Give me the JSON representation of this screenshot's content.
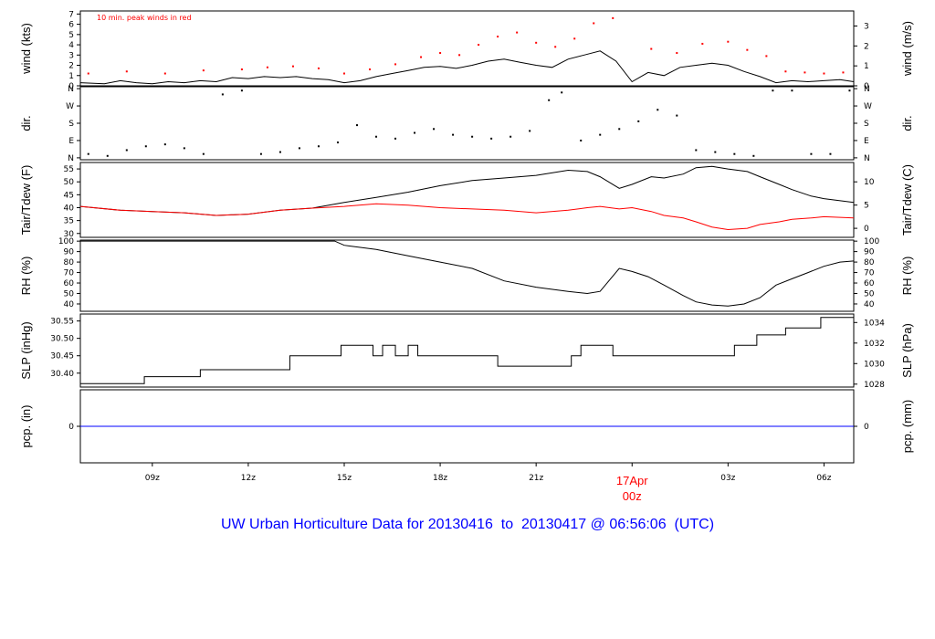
{
  "title": "UW Urban Horticulture Data for 20130416  to  20130417 @ 06:56:06  (UTC)",
  "colors": {
    "black": "#000000",
    "red": "#ff0000",
    "blue": "#0000ff"
  },
  "chart_data": {
    "type": "line",
    "x_axis": {
      "range_hours": [
        6.75,
        30.93
      ],
      "ticks": [
        {
          "hour": 9,
          "label": "09z"
        },
        {
          "hour": 12,
          "label": "12z"
        },
        {
          "hour": 15,
          "label": "15z"
        },
        {
          "hour": 18,
          "label": "18z"
        },
        {
          "hour": 21,
          "label": "21z"
        },
        {
          "hour": 27,
          "label": "03z"
        },
        {
          "hour": 30,
          "label": "06z"
        }
      ],
      "day_marker": {
        "hour": 24,
        "label_top": "17Apr",
        "label_bottom": "00z"
      }
    },
    "panels": [
      {
        "id": "wind",
        "ylabel_left": "wind (kts)",
        "ylabel_right": "wind (m/s)",
        "ylim": [
          0,
          7.3
        ],
        "left_ticks": [
          {
            "v": 0,
            "label": "0"
          },
          {
            "v": 1,
            "label": "1"
          },
          {
            "v": 2,
            "label": "2"
          },
          {
            "v": 3,
            "label": "3"
          },
          {
            "v": 4,
            "label": "4"
          },
          {
            "v": 5,
            "label": "5"
          },
          {
            "v": 6,
            "label": "6"
          },
          {
            "v": 7,
            "label": "7"
          }
        ],
        "right_ticks": [
          {
            "v": 0,
            "label": "0"
          },
          {
            "v": 1.944,
            "label": "1"
          },
          {
            "v": 3.888,
            "label": "2"
          },
          {
            "v": 5.832,
            "label": "3"
          }
        ],
        "annotation": "10 min. peak winds in red",
        "series": [
          {
            "name": "wind",
            "color": "#000000",
            "kind": "line",
            "x": [
              6.75,
              7.5,
              8.0,
              8.5,
              9.0,
              9.5,
              10.0,
              10.5,
              11.0,
              11.5,
              12.0,
              12.5,
              13.0,
              13.5,
              14.0,
              14.5,
              15.0,
              15.5,
              16.0,
              16.5,
              17.0,
              17.5,
              18.0,
              18.5,
              19.0,
              19.5,
              20.0,
              20.5,
              21.0,
              21.5,
              22.0,
              22.5,
              23.0,
              23.5,
              24.0,
              24.5,
              25.0,
              25.5,
              26.0,
              26.5,
              27.0,
              27.5,
              28.0,
              28.5,
              29.0,
              29.5,
              30.0,
              30.5,
              30.93
            ],
            "y": [
              0.3,
              0.2,
              0.5,
              0.3,
              0.2,
              0.4,
              0.3,
              0.5,
              0.4,
              0.8,
              0.7,
              0.9,
              0.8,
              0.9,
              0.7,
              0.6,
              0.3,
              0.5,
              0.9,
              1.2,
              1.5,
              1.8,
              1.9,
              1.7,
              2.0,
              2.4,
              2.6,
              2.3,
              2.0,
              1.8,
              2.6,
              3.0,
              3.4,
              2.4,
              0.4,
              1.3,
              1.0,
              1.8,
              2.0,
              2.2,
              2.0,
              1.4,
              0.9,
              0.3,
              0.5,
              0.4,
              0.5,
              0.6,
              0.4
            ]
          },
          {
            "name": "peak",
            "color": "#ff0000",
            "kind": "points",
            "x": [
              7.0,
              8.2,
              9.4,
              10.6,
              11.8,
              12.6,
              13.4,
              14.2,
              15.0,
              15.8,
              16.6,
              17.4,
              18.0,
              18.6,
              19.2,
              19.8,
              20.4,
              21.0,
              21.6,
              22.2,
              22.8,
              23.4,
              24.6,
              25.4,
              26.2,
              27.0,
              27.6,
              28.2,
              28.8,
              29.4,
              30.0,
              30.6
            ],
            "y": [
              1.2,
              1.4,
              1.2,
              1.5,
              1.6,
              1.8,
              1.9,
              1.7,
              1.2,
              1.6,
              2.1,
              2.8,
              3.2,
              3.0,
              4.0,
              4.8,
              5.2,
              4.2,
              3.8,
              4.6,
              6.1,
              6.6,
              3.6,
              3.2,
              4.1,
              4.3,
              3.5,
              2.9,
              1.4,
              1.3,
              1.2,
              1.3
            ]
          }
        ]
      },
      {
        "id": "dir",
        "ylabel_left": "dir.",
        "ylabel_right": "dir.",
        "ylim": [
          -10,
          370
        ],
        "left_ticks": [
          {
            "v": 0,
            "label": "N"
          },
          {
            "v": 90,
            "label": "E"
          },
          {
            "v": 180,
            "label": "S"
          },
          {
            "v": 270,
            "label": "W"
          },
          {
            "v": 360,
            "label": "N"
          }
        ],
        "right_ticks": [
          {
            "v": 0,
            "label": "N"
          },
          {
            "v": 90,
            "label": "E"
          },
          {
            "v": 180,
            "label": "S"
          },
          {
            "v": 270,
            "label": "W"
          },
          {
            "v": 360,
            "label": "N"
          }
        ],
        "series": [
          {
            "name": "direction",
            "color": "#000000",
            "kind": "points",
            "x": [
              7.0,
              7.6,
              8.2,
              8.8,
              9.4,
              10.0,
              10.6,
              11.2,
              11.8,
              12.4,
              13.0,
              13.6,
              14.2,
              14.8,
              15.4,
              16.0,
              16.6,
              17.2,
              17.8,
              18.4,
              19.0,
              19.6,
              20.2,
              20.8,
              21.4,
              21.8,
              22.4,
              23.0,
              23.6,
              24.2,
              24.8,
              25.4,
              26.0,
              26.6,
              27.2,
              27.8,
              28.4,
              29.0,
              29.6,
              30.2,
              30.8
            ],
            "y": [
              20,
              10,
              40,
              60,
              70,
              50,
              20,
              330,
              350,
              20,
              30,
              50,
              60,
              80,
              170,
              110,
              100,
              130,
              150,
              120,
              110,
              100,
              110,
              140,
              300,
              340,
              90,
              120,
              150,
              190,
              250,
              220,
              40,
              30,
              20,
              10,
              350,
              350,
              20,
              20,
              350
            ]
          }
        ]
      },
      {
        "id": "temp",
        "ylabel_left": "Tair/Tdew (F)",
        "ylabel_right": "Tair/Tdew (C)",
        "ylim": [
          28.5,
          57.5
        ],
        "left_ticks": [
          {
            "v": 30,
            "label": "30"
          },
          {
            "v": 35,
            "label": "35"
          },
          {
            "v": 40,
            "label": "40"
          },
          {
            "v": 45,
            "label": "45"
          },
          {
            "v": 50,
            "label": "50"
          },
          {
            "v": 55,
            "label": "55"
          }
        ],
        "right_ticks": [
          {
            "v": 32,
            "label": "0"
          },
          {
            "v": 41,
            "label": "5"
          },
          {
            "v": 50,
            "label": "10"
          }
        ],
        "series": [
          {
            "name": "Tair",
            "color": "#000000",
            "kind": "line",
            "x": [
              6.75,
              8.0,
              9.0,
              10.0,
              11.0,
              12.0,
              13.0,
              14.0,
              15.0,
              16.0,
              17.0,
              18.0,
              19.0,
              20.0,
              21.0,
              22.0,
              22.6,
              23.0,
              23.6,
              24.0,
              24.6,
              25.0,
              25.6,
              26.0,
              26.5,
              27.0,
              27.6,
              28.0,
              28.6,
              29.0,
              29.6,
              30.0,
              30.93
            ],
            "y": [
              40.5,
              39.0,
              38.5,
              38.0,
              37.0,
              37.5,
              39.0,
              39.8,
              42.0,
              44.0,
              46.0,
              48.5,
              50.5,
              51.5,
              52.5,
              54.5,
              54.0,
              52.0,
              47.5,
              49.0,
              52.0,
              51.5,
              53.0,
              55.5,
              56.0,
              55.0,
              54.0,
              52.0,
              49.0,
              47.0,
              44.5,
              43.5,
              42.0
            ]
          },
          {
            "name": "Tdew",
            "color": "#ff0000",
            "kind": "line",
            "x": [
              6.75,
              8.0,
              9.0,
              10.0,
              11.0,
              12.0,
              13.0,
              14.0,
              15.0,
              16.0,
              17.0,
              18.0,
              19.0,
              20.0,
              21.0,
              22.0,
              22.6,
              23.0,
              23.6,
              24.0,
              24.6,
              25.0,
              25.6,
              26.0,
              26.5,
              27.0,
              27.6,
              28.0,
              28.6,
              29.0,
              29.6,
              30.0,
              30.93
            ],
            "y": [
              40.5,
              39.0,
              38.5,
              38.0,
              37.0,
              37.5,
              39.0,
              39.8,
              40.5,
              41.5,
              41.0,
              40.0,
              39.5,
              39.0,
              38.0,
              39.0,
              40.0,
              40.5,
              39.5,
              40.0,
              38.5,
              37.0,
              36.0,
              34.5,
              32.5,
              31.5,
              32.0,
              33.5,
              34.5,
              35.5,
              36.0,
              36.5,
              36.0
            ]
          }
        ]
      },
      {
        "id": "rh",
        "ylabel_left": "RH (%)",
        "ylabel_right": "RH (%)",
        "ylim": [
          33,
          101
        ],
        "left_ticks": [
          {
            "v": 40,
            "label": "40"
          },
          {
            "v": 50,
            "label": "50"
          },
          {
            "v": 60,
            "label": "60"
          },
          {
            "v": 70,
            "label": "70"
          },
          {
            "v": 80,
            "label": "80"
          },
          {
            "v": 90,
            "label": "90"
          },
          {
            "v": 100,
            "label": "100"
          }
        ],
        "right_ticks": [
          {
            "v": 40,
            "label": "40"
          },
          {
            "v": 50,
            "label": "50"
          },
          {
            "v": 60,
            "label": "60"
          },
          {
            "v": 70,
            "label": "70"
          },
          {
            "v": 80,
            "label": "80"
          },
          {
            "v": 90,
            "label": "90"
          },
          {
            "v": 100,
            "label": "100"
          }
        ],
        "series": [
          {
            "name": "RH",
            "color": "#000000",
            "kind": "line",
            "x": [
              6.75,
              10.0,
              14.0,
              14.7,
              15.0,
              16.0,
              17.0,
              18.0,
              19.0,
              20.0,
              21.0,
              22.0,
              22.6,
              23.0,
              23.6,
              24.0,
              24.5,
              25.0,
              25.6,
              26.0,
              26.5,
              27.0,
              27.5,
              28.0,
              28.5,
              29.0,
              29.5,
              30.0,
              30.5,
              30.93
            ],
            "y": [
              100,
              100,
              100,
              100,
              96,
              92,
              86,
              80,
              74,
              62,
              56,
              52,
              50,
              52,
              74,
              71,
              66,
              58,
              48,
              42,
              39,
              38,
              40,
              46,
              58,
              64,
              70,
              76,
              80,
              81
            ]
          }
        ]
      },
      {
        "id": "slp",
        "ylabel_left": "SLP (inHg)",
        "ylabel_right": "SLP (hPa)",
        "ylim": [
          30.36,
          30.57
        ],
        "left_ticks": [
          {
            "v": 30.4,
            "label": "30.40"
          },
          {
            "v": 30.45,
            "label": "30.45"
          },
          {
            "v": 30.5,
            "label": "30.50"
          },
          {
            "v": 30.55,
            "label": "30.55"
          }
        ],
        "right_ticks": [
          {
            "v": 30.3684,
            "label": "1028"
          },
          {
            "v": 30.4275,
            "label": "1030"
          },
          {
            "v": 30.4865,
            "label": "1032"
          },
          {
            "v": 30.5456,
            "label": "1034"
          }
        ],
        "series": [
          {
            "name": "SLP",
            "color": "#000000",
            "kind": "step",
            "x": [
              6.75,
              8.75,
              10.5,
              13.3,
              14.9,
              15.9,
              16.2,
              16.6,
              17.0,
              17.3,
              17.5,
              19.8,
              21.7,
              22.1,
              22.4,
              23.4,
              26.5,
              27.2,
              27.9,
              28.8,
              29.9,
              30.93
            ],
            "y": [
              30.37,
              30.39,
              30.41,
              30.45,
              30.48,
              30.45,
              30.48,
              30.45,
              30.48,
              30.45,
              30.45,
              30.42,
              30.42,
              30.45,
              30.48,
              30.45,
              30.45,
              30.48,
              30.51,
              30.53,
              30.56,
              30.56
            ]
          }
        ]
      },
      {
        "id": "pcp",
        "ylabel_left": "pcp. (in)",
        "ylabel_right": "pcp. (mm)",
        "ylim": [
          -1,
          1
        ],
        "left_ticks": [
          {
            "v": 0,
            "label": "0"
          }
        ],
        "right_ticks": [
          {
            "v": 0,
            "label": "0"
          }
        ],
        "series": [
          {
            "name": "precip",
            "color": "#0000ff",
            "kind": "line",
            "x": [
              6.75,
              30.93
            ],
            "y": [
              0,
              0
            ]
          }
        ]
      }
    ]
  }
}
